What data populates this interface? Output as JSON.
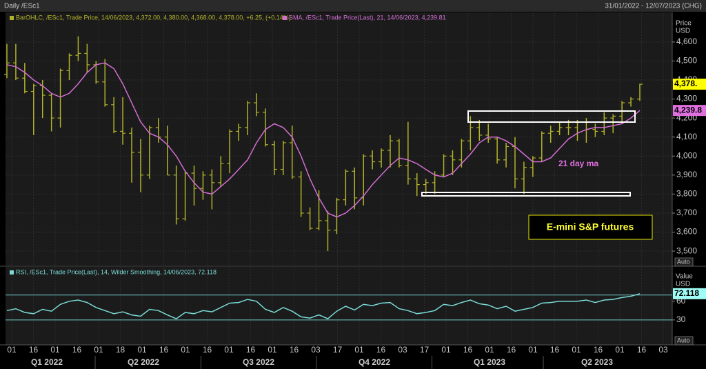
{
  "header": {
    "title": "Daily /ESc1",
    "range": "31/01/2022 - 12/07/2023 (CHG)"
  },
  "chart_data": [
    {
      "type": "ohlc",
      "ylabel": "Price",
      "yunit": "USD",
      "scale_mode": "Auto",
      "ylim": [
        3435,
        4712
      ],
      "yticks": [
        {
          "value": 4600,
          "label": "4,600"
        },
        {
          "value": 4500,
          "label": "4,500"
        },
        {
          "value": 4400,
          "label": "4,400"
        },
        {
          "value": 4300,
          "label": "4,300"
        },
        {
          "value": 4200,
          "label": "4,200"
        },
        {
          "value": 4100,
          "label": "4,100"
        },
        {
          "value": 4000,
          "label": "4,000"
        },
        {
          "value": 3900,
          "label": "3,900"
        },
        {
          "value": 3800,
          "label": "3,800"
        },
        {
          "value": 3700,
          "label": "3,700"
        },
        {
          "value": 3600,
          "label": "3,600"
        },
        {
          "value": 3500,
          "label": "3,500"
        }
      ],
      "grid": true,
      "annotations": [
        "21 day ma",
        "E-mini S&P futures"
      ],
      "series": [
        {
          "name": "BarOHLC, /ESc1, Trade Price, 14/06/2023, 4,372.00, 4,380.00, 4,368.00, 4,378.00, +6.25, (+0.14%)",
          "color": "#b3b32a",
          "last_label": {
            "value": 4378,
            "label": "4,378.",
            "color": "#ffff00"
          },
          "open": [
            4430,
            4490,
            4410,
            4340,
            4370,
            4320,
            4200,
            4450,
            4530,
            4540,
            4480,
            4390,
            4270,
            4130,
            4120,
            4020,
            3900,
            4150,
            4100,
            3900,
            3670,
            3910,
            3830,
            3900,
            3860,
            3960,
            4130,
            4150,
            4280,
            4230,
            4060,
            3930,
            4070,
            3890,
            3700,
            3620,
            3660,
            3610,
            3770,
            3920,
            3780,
            4000,
            3970,
            4030,
            4080,
            3950,
            3880,
            3850,
            3860,
            3900,
            4000,
            3980,
            4080,
            4150,
            4110,
            4090,
            3980,
            4050,
            3880,
            3940,
            3990,
            4120,
            4130,
            4150,
            4150,
            4180,
            4140,
            4130,
            4200,
            4210,
            4280,
            4300
          ],
          "high": [
            4590,
            4590,
            4490,
            4380,
            4400,
            4330,
            4460,
            4540,
            4630,
            4590,
            4500,
            4510,
            4310,
            4310,
            4150,
            4090,
            4160,
            4200,
            4160,
            3950,
            3920,
            3950,
            3920,
            3930,
            4000,
            4140,
            4170,
            4290,
            4330,
            4250,
            4080,
            4080,
            4160,
            3920,
            3730,
            3820,
            3710,
            3780,
            3930,
            3940,
            4010,
            4030,
            4040,
            4110,
            4090,
            4180,
            3910,
            3880,
            3920,
            4010,
            4030,
            4090,
            4210,
            4190,
            4170,
            4100,
            4070,
            4100,
            3970,
            4000,
            4130,
            4160,
            4180,
            4190,
            4190,
            4200,
            4170,
            4230,
            4220,
            4290,
            4310,
            4380
          ],
          "low": [
            4410,
            4400,
            4330,
            4110,
            4200,
            4130,
            4150,
            4400,
            4500,
            4440,
            4380,
            4260,
            4120,
            4060,
            3860,
            3810,
            3880,
            4070,
            3900,
            3640,
            3660,
            3740,
            3770,
            3720,
            3840,
            3910,
            4080,
            4110,
            4210,
            4050,
            3900,
            3900,
            3880,
            3680,
            3610,
            3610,
            3500,
            3590,
            3740,
            3720,
            3740,
            3930,
            3940,
            3940,
            3940,
            3850,
            3790,
            3800,
            3800,
            3890,
            3900,
            3940,
            4030,
            4080,
            4070,
            3960,
            3940,
            3830,
            3800,
            3890,
            3970,
            4070,
            4110,
            4110,
            4080,
            4070,
            4100,
            4110,
            4120,
            4170,
            4260,
            4290
          ],
          "close": [
            4490,
            4410,
            4340,
            4370,
            4320,
            4200,
            4450,
            4530,
            4540,
            4480,
            4390,
            4270,
            4130,
            4120,
            4020,
            3900,
            4150,
            4100,
            3900,
            3670,
            3910,
            3830,
            3900,
            3860,
            3960,
            4130,
            4150,
            4280,
            4230,
            4060,
            3930,
            4070,
            3890,
            3700,
            3620,
            3660,
            3610,
            3770,
            3920,
            3780,
            4000,
            3970,
            4030,
            4080,
            3950,
            3880,
            3850,
            3860,
            3900,
            4000,
            3980,
            4080,
            4150,
            4110,
            4090,
            3980,
            4050,
            3880,
            3940,
            3990,
            4120,
            4130,
            4150,
            4150,
            4180,
            4140,
            4130,
            4200,
            4210,
            4280,
            4300,
            4378
          ]
        },
        {
          "name": "SMA, /ESc1, Trade Price(Last),  21, 14/06/2023, 4,239.81",
          "color": "#d36ed3",
          "last_label": {
            "value": 4239.81,
            "label": "4,239.8",
            "color": "#e070e0"
          },
          "values": [
            4480,
            4470,
            4440,
            4400,
            4370,
            4330,
            4310,
            4330,
            4380,
            4440,
            4480,
            4490,
            4460,
            4380,
            4280,
            4180,
            4120,
            4100,
            4060,
            4000,
            3920,
            3860,
            3810,
            3800,
            3840,
            3880,
            3930,
            3980,
            4070,
            4140,
            4170,
            4150,
            4100,
            4000,
            3880,
            3780,
            3700,
            3680,
            3700,
            3740,
            3790,
            3850,
            3900,
            3950,
            3990,
            3980,
            3960,
            3930,
            3900,
            3890,
            3910,
            3960,
            4010,
            4070,
            4100,
            4100,
            4080,
            4050,
            4010,
            3970,
            3970,
            3990,
            4040,
            4090,
            4120,
            4140,
            4150,
            4150,
            4160,
            4170,
            4200,
            4239.81
          ]
        }
      ]
    },
    {
      "type": "line",
      "ylabel": "Value",
      "yunit": "USD",
      "scale_mode": "Auto",
      "ylim": [
        -10,
        114
      ],
      "yticks": [
        60,
        30
      ],
      "bands": [
        30,
        70
      ],
      "band_color": "#6fc9c4",
      "xticks": [
        "01",
        "16",
        "01",
        "16",
        "01",
        "18",
        "01",
        "16",
        "01",
        "16",
        "01",
        "16",
        "01",
        "16",
        "03",
        "17",
        "01",
        "16",
        "03",
        "17",
        "01",
        "16",
        "01",
        "16",
        "01",
        "16",
        "01",
        "16",
        "01",
        "16",
        "03"
      ],
      "quarters": [
        "Q1 2022",
        "Q2 2022",
        "Q3 2022",
        "Q4 2022",
        "Q1 2023",
        "Q2 2023"
      ],
      "series": [
        {
          "name": "RSI, /ESc1, Trade Price(Last), 14, Wilder Smoothing, 14/06/2023, 72.118",
          "color": "#7adbd6",
          "last_label": {
            "value": 72.118,
            "label": "72.118",
            "color": "#9ffcf6"
          },
          "values": [
            45,
            48,
            42,
            40,
            47,
            44,
            55,
            60,
            62,
            58,
            50,
            45,
            40,
            43,
            38,
            36,
            47,
            45,
            38,
            32,
            42,
            40,
            45,
            43,
            50,
            57,
            58,
            63,
            60,
            47,
            42,
            50,
            44,
            35,
            33,
            38,
            32,
            44,
            52,
            46,
            55,
            53,
            57,
            58,
            48,
            45,
            40,
            42,
            45,
            55,
            53,
            58,
            62,
            56,
            54,
            48,
            52,
            44,
            47,
            50,
            57,
            58,
            60,
            60,
            60,
            62,
            58,
            62,
            63,
            66,
            68,
            72.118
          ]
        }
      ]
    }
  ]
}
